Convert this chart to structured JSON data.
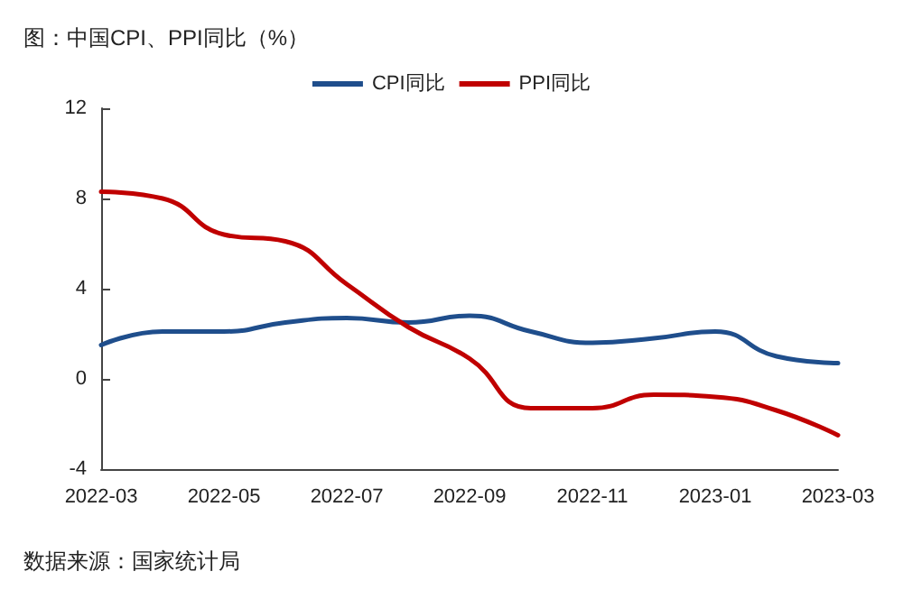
{
  "chart_data": {
    "type": "line",
    "title": "图：中国CPI、PPI同比（%）",
    "categories": [
      "2022-03",
      null,
      "2022-05",
      null,
      "2022-07",
      null,
      "2022-09",
      null,
      "2022-11",
      null,
      "2023-01",
      null,
      "2023-03"
    ],
    "series": [
      {
        "name": "CPI同比",
        "color": "#1f4e8c",
        "values": [
          1.5,
          2.1,
          2.1,
          2.5,
          2.7,
          2.5,
          2.8,
          2.1,
          1.6,
          1.8,
          2.1,
          1.0,
          0.7
        ]
      },
      {
        "name": "PPI同比",
        "color": "#c00000",
        "values": [
          8.3,
          8.0,
          6.4,
          6.1,
          4.2,
          2.3,
          0.9,
          -1.3,
          -1.3,
          -0.7,
          -0.8,
          -1.4,
          -2.5
        ]
      }
    ],
    "ylim": [
      -4,
      12
    ],
    "yticks": [
      -4,
      0,
      4,
      8,
      12
    ],
    "grid": false,
    "legend": "top",
    "marker": "none",
    "line_style": "solid",
    "annotations": [
      "数据来源：国家统计局"
    ]
  }
}
